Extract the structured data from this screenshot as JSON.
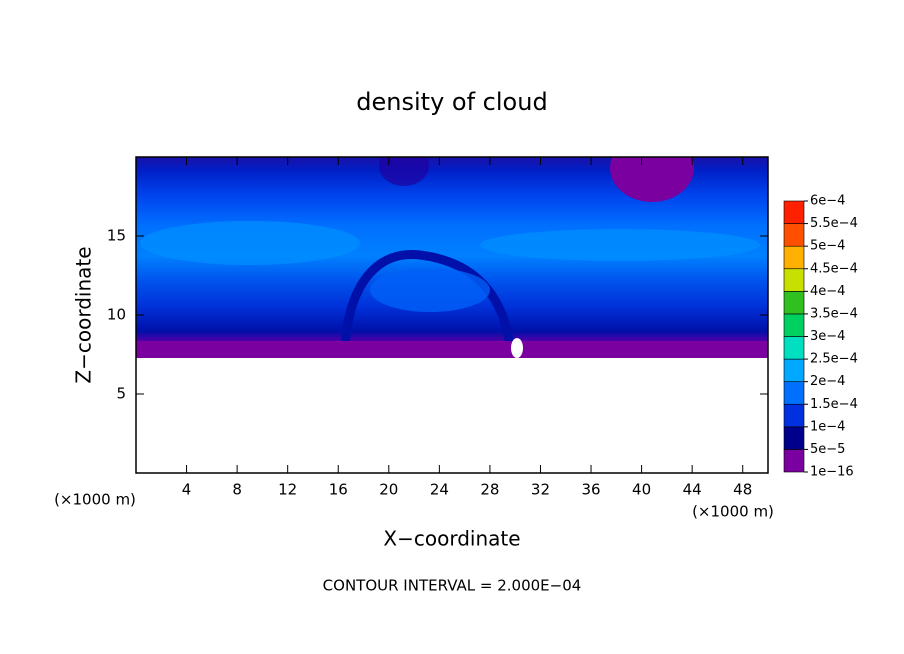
{
  "chart_data": {
    "type": "contour",
    "title": "density of cloud",
    "x_label": "X−coordinate",
    "y_label": "Z−coordinate",
    "x_unit_left": "(×1000 m)",
    "x_unit_right": "(×1000 m)",
    "footer": "CONTOUR INTERVAL = 2.000E−04",
    "xlim": [
      0,
      50
    ],
    "ylim": [
      0,
      20
    ],
    "xticks": [
      4,
      8,
      12,
      16,
      20,
      24,
      28,
      32,
      36,
      40,
      44,
      48
    ],
    "yticks": [
      5,
      10,
      15
    ],
    "colorbar": {
      "levels": [
        {
          "value": 1e-16,
          "label": "1e−16"
        },
        {
          "value": 5e-05,
          "label": "5e−5"
        },
        {
          "value": 0.0001,
          "label": "1e−4"
        },
        {
          "value": 0.00015,
          "label": "1.5e−4"
        },
        {
          "value": 0.0002,
          "label": "2e−4"
        },
        {
          "value": 0.00025,
          "label": "2.5e−4"
        },
        {
          "value": 0.0003,
          "label": "3e−4"
        },
        {
          "value": 0.00035,
          "label": "3.5e−4"
        },
        {
          "value": 0.0004,
          "label": "4e−4"
        },
        {
          "value": 0.00045,
          "label": "4.5e−4"
        },
        {
          "value": 0.0005,
          "label": "5e−4"
        },
        {
          "value": 0.00055,
          "label": "5.5e−4"
        },
        {
          "value": 0.0006,
          "label": "6e−4"
        }
      ],
      "colors": [
        "#7b00a0",
        "#00008c",
        "#0030e0",
        "#0070ff",
        "#00a8ff",
        "#00e0c0",
        "#00d060",
        "#30c020",
        "#c8e000",
        "#ffb000",
        "#ff5000",
        "#ff2000"
      ]
    }
  }
}
